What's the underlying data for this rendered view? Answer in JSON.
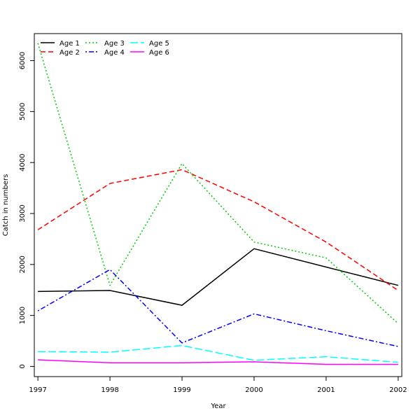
{
  "chart_data": {
    "type": "line",
    "title": "",
    "xlabel": "Year",
    "ylabel": "Catch in numbers",
    "x": [
      1997,
      1998,
      1999,
      2000,
      2001,
      2002
    ],
    "x_ticks": [
      "1997",
      "1998",
      "1999",
      "2000",
      "2001",
      "2002"
    ],
    "y_ticks": [
      "0",
      "1000",
      "2000",
      "3000",
      "4000",
      "5000",
      "6000"
    ],
    "y_tick_values": [
      0,
      1000,
      2000,
      3000,
      4000,
      5000,
      6000
    ],
    "ylim": [
      -200,
      6530
    ],
    "xlim": [
      1996.95,
      2002.05
    ],
    "legend_placement": "top-left",
    "grid": false,
    "series": [
      {
        "name": "Age 1",
        "color": "#000000",
        "dash": "solid",
        "values": [
          1470,
          1490,
          1200,
          2310,
          1950,
          1590
        ]
      },
      {
        "name": "Age 2",
        "color": "#ff0000",
        "dash": "dashed",
        "values": [
          2680,
          3590,
          3860,
          3230,
          2440,
          1490
        ]
      },
      {
        "name": "Age 3",
        "color": "#00cd00",
        "dash": "dotted",
        "values": [
          6340,
          1590,
          3980,
          2440,
          2130,
          840
        ]
      },
      {
        "name": "Age 4",
        "color": "#0000ff",
        "dash": "dotdash",
        "values": [
          1090,
          1900,
          460,
          1030,
          700,
          390
        ]
      },
      {
        "name": "Age 5",
        "color": "#00ffff",
        "dash": "longdash",
        "values": [
          290,
          280,
          410,
          120,
          190,
          80
        ]
      },
      {
        "name": "Age 6",
        "color": "#ff00ff",
        "dash": "solid",
        "values": [
          130,
          70,
          70,
          90,
          40,
          40
        ]
      }
    ]
  }
}
